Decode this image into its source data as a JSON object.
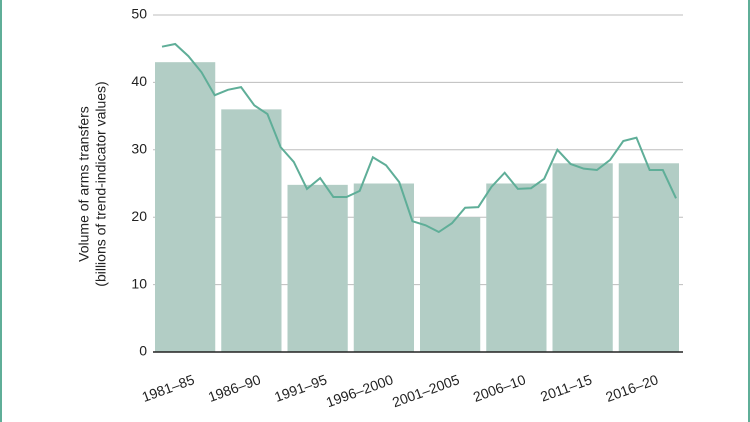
{
  "chart_data": {
    "type": "bar",
    "y_label_lines": [
      "Volume of arms transfers",
      "(billions of trend-indicator values)"
    ],
    "categories": [
      "1981–85",
      "1986–90",
      "1991–95",
      "1996–2000",
      "2001–2005",
      "2006–10",
      "2011–15",
      "2016–20"
    ],
    "values": [
      43,
      36,
      24.8,
      25,
      20,
      25,
      28,
      28
    ],
    "color": "#b2cdc5",
    "line": {
      "color": "#5fae98",
      "values": [
        45.3,
        45.7,
        43.9,
        41.5,
        38.1,
        38.9,
        39.3,
        36.6,
        35.3,
        30.4,
        28.2,
        24.2,
        25.8,
        23.0,
        23.0,
        23.9,
        28.9,
        27.7,
        25.2,
        19.4,
        18.8,
        17.8,
        19.1,
        21.4,
        21.5,
        24.5,
        26.6,
        24.2,
        24.3,
        25.7,
        30.0,
        27.9,
        27.2,
        27.0,
        28.5,
        31.3,
        31.8,
        27.0,
        27.0,
        22.8
      ]
    },
    "ylim": [
      0,
      50
    ],
    "yticks": [
      0,
      10,
      20,
      30,
      40,
      50
    ],
    "grid": true
  }
}
